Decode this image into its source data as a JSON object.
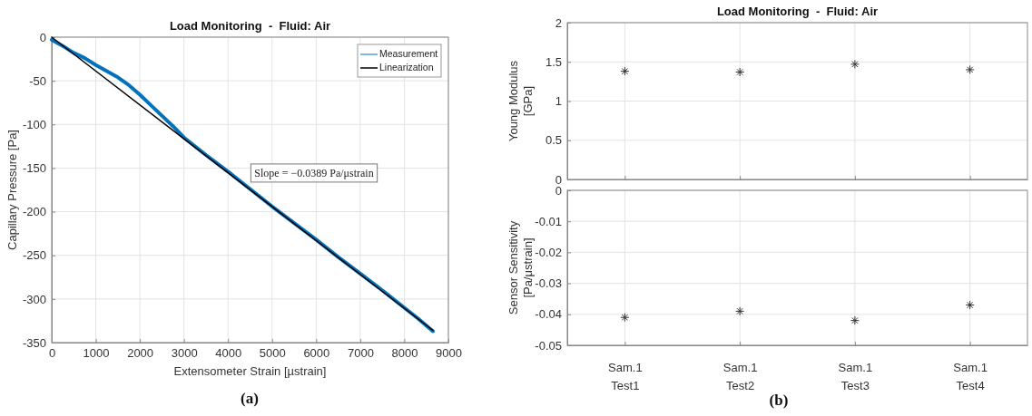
{
  "chart_data": [
    {
      "type": "line",
      "title": "Load Monitoring  -  Fluid: Air",
      "xlabel": "Extensometer Strain [µstrain]",
      "ylabel": "Capillary Pressure [Pa]",
      "xlim": [
        0,
        9000
      ],
      "xticks": [
        0,
        1000,
        2000,
        3000,
        4000,
        5000,
        6000,
        7000,
        8000,
        9000
      ],
      "ylim": [
        -350,
        0
      ],
      "yticks": [
        -350,
        -300,
        -250,
        -200,
        -150,
        -100,
        -50,
        0
      ],
      "grid": true,
      "legend": "top right",
      "series": [
        {
          "name": "Measurement",
          "color": "#0072bd",
          "x": [
            0,
            250,
            500,
            750,
            1000,
            1250,
            1500,
            1750,
            2000,
            2250,
            2500,
            2750,
            3000,
            3500,
            4000,
            4500,
            5000,
            5500,
            6000,
            6500,
            7000,
            7500,
            8000,
            8300,
            8650
          ],
          "values": [
            -3,
            -10,
            -18,
            -24,
            -32,
            -39,
            -46,
            -55,
            -66,
            -78,
            -90,
            -102,
            -115,
            -135,
            -154,
            -174,
            -194,
            -213,
            -232,
            -252,
            -271,
            -290,
            -310,
            -322,
            -337
          ]
        },
        {
          "name": "Linearization",
          "color": "#000000",
          "x": [
            0,
            8650
          ],
          "values": [
            0,
            -336
          ]
        }
      ],
      "annotations": [
        "Slope = −0.0389 Pa/μstrain",
        "(a)"
      ]
    },
    {
      "type": "scatter",
      "title": "Load Monitoring  -  Fluid: Air",
      "ylabel": "Young Modulus\n[GPa]",
      "categories": [
        null,
        null,
        null,
        null
      ],
      "ylim": [
        0,
        2
      ],
      "yticks": [
        0,
        0.5,
        1,
        1.5,
        2
      ],
      "grid": true,
      "marker": "cross",
      "tick_labels": "y",
      "series": [
        {
          "color": "#333333",
          "values": [
            1.38,
            1.37,
            1.47,
            1.4
          ]
        }
      ]
    },
    {
      "type": "scatter",
      "ylabel": "Sensor Sensitivity\n[Pa/μstrain]",
      "categories": [
        "Sam.1\nTest1",
        "Sam.1\nTest2",
        "Sam.1\nTest3",
        "Sam.1\nTest4"
      ],
      "ylim": [
        -0.05,
        0
      ],
      "yticks": [
        -0.05,
        -0.04,
        -0.03,
        -0.02,
        -0.01,
        0
      ],
      "grid": true,
      "marker": "cross",
      "series": [
        {
          "color": "#333333",
          "values": [
            -0.041,
            -0.039,
            -0.042,
            -0.037
          ]
        }
      ],
      "annotations": [
        "(b)"
      ]
    }
  ]
}
